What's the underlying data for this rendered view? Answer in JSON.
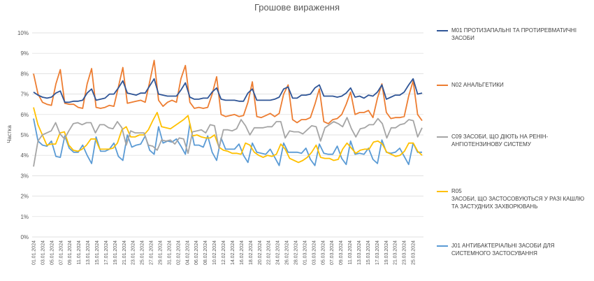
{
  "chart_data": {
    "type": "line",
    "title": "Грошове вираження",
    "ylabel": "Частка",
    "xlabel": "",
    "ylim": [
      0,
      10
    ],
    "y_ticks": [
      "0%",
      "1%",
      "2%",
      "3%",
      "4%",
      "5%",
      "6%",
      "7%",
      "8%",
      "9%",
      "10%"
    ],
    "x_tick_labels": [
      "01.01.2024",
      "03.01.2024",
      "05.01.2024",
      "07.01.2024",
      "09.01.2024",
      "11.01.2024",
      "13.01.2024",
      "15.01.2024",
      "17.01.2024",
      "19.01.2024",
      "21.01.2024",
      "23.01.2024",
      "25.01.2024",
      "27.01.2024",
      "29.01.2024",
      "31.01.2024",
      "02.02.2024",
      "04.02.2024",
      "06.02.2024",
      "08.02.2024",
      "10.02.2024",
      "12.02.2024",
      "14.02.2024",
      "16.02.2024",
      "18.02.2024",
      "20.02.2024",
      "22.02.2024",
      "24.02.2024",
      "26.02.2024",
      "28.02.2024",
      "01.03.2024",
      "03.03.2024",
      "05.03.2024",
      "07.03.2024",
      "09.03.2024",
      "11.03.2024",
      "13.03.2024",
      "15.03.2024",
      "17.03.2024",
      "19.03.2024",
      "21.03.2024",
      "23.03.2024",
      "25.03.2024"
    ],
    "grid": true,
    "legend_position": "right",
    "x_start": "2024-01-01",
    "x_end": "2024-03-27",
    "series": [
      {
        "name": "M01 ПРОТИЗАПАЛЬНІ ТА ПРОТИРЕВМАТИЧНІ ЗАСОБИ",
        "color": "#2f5597",
        "values": [
          7.1,
          6.95,
          6.85,
          6.8,
          6.85,
          7.05,
          7.15,
          6.6,
          6.6,
          6.65,
          6.65,
          6.7,
          7.05,
          7.25,
          6.7,
          6.75,
          6.8,
          7.0,
          7.0,
          7.3,
          7.65,
          7.05,
          7.0,
          6.95,
          7.05,
          7.05,
          7.4,
          7.75,
          7.0,
          6.95,
          6.9,
          6.9,
          6.9,
          7.2,
          7.55,
          6.85,
          6.75,
          6.75,
          6.8,
          6.8,
          7.1,
          7.3,
          6.75,
          6.7,
          6.7,
          6.7,
          6.65,
          6.65,
          7.05,
          7.25,
          6.7,
          6.7,
          6.7,
          6.7,
          6.75,
          6.85,
          7.25,
          7.35,
          6.8,
          6.8,
          6.95,
          6.95,
          7.0,
          7.3,
          7.45,
          6.9,
          6.9,
          6.9,
          6.85,
          6.9,
          7.05,
          7.3,
          6.85,
          6.9,
          6.8,
          6.95,
          6.9,
          7.1,
          7.45,
          6.75,
          6.85,
          6.95,
          6.95,
          7.1,
          7.45,
          7.75,
          7.0,
          7.05
        ]
      },
      {
        "name": "N02 АНАЛЬГЕТИКИ",
        "color": "#ed7d31",
        "values": [
          8.0,
          7.0,
          6.6,
          6.5,
          6.45,
          7.5,
          8.2,
          6.55,
          6.5,
          6.5,
          6.35,
          6.3,
          7.5,
          8.25,
          6.35,
          6.3,
          6.35,
          6.45,
          6.4,
          7.35,
          8.3,
          6.55,
          6.6,
          6.65,
          6.7,
          6.6,
          7.6,
          8.65,
          6.7,
          6.4,
          6.6,
          6.7,
          6.6,
          7.75,
          8.4,
          6.6,
          6.3,
          6.35,
          6.3,
          6.35,
          7.0,
          7.85,
          6.0,
          5.9,
          5.95,
          6.0,
          5.9,
          5.95,
          6.6,
          7.6,
          5.9,
          5.85,
          5.95,
          6.05,
          5.9,
          6.05,
          7.0,
          7.45,
          5.75,
          5.6,
          5.75,
          5.75,
          5.85,
          6.5,
          7.25,
          5.65,
          5.55,
          5.75,
          5.8,
          6.0,
          6.5,
          7.1,
          6.0,
          6.1,
          6.1,
          6.2,
          5.85,
          6.8,
          7.5,
          6.1,
          5.8,
          5.85,
          5.85,
          5.9,
          6.9,
          7.65,
          6.0,
          5.7
        ]
      },
      {
        "name": "C09 ЗАСОБИ, ЩО ДІЮТЬ НА РЕНІН-АНГІОТЕНЗИНОВУ СИСТЕМУ",
        "color": "#a5a5a5",
        "values": [
          3.45,
          4.7,
          5.0,
          5.1,
          5.2,
          5.6,
          5.05,
          4.8,
          5.2,
          5.55,
          5.6,
          5.5,
          5.6,
          5.6,
          5.1,
          5.5,
          5.5,
          5.35,
          5.3,
          5.65,
          5.35,
          4.5,
          5.2,
          5.1,
          5.1,
          5.1,
          4.5,
          4.45,
          4.25,
          4.75,
          4.7,
          4.75,
          4.55,
          4.85,
          4.8,
          4.1,
          5.15,
          5.2,
          5.25,
          5.1,
          5.5,
          5.45,
          4.35,
          5.25,
          5.25,
          5.2,
          5.3,
          5.75,
          5.45,
          5.0,
          5.35,
          5.35,
          5.35,
          5.4,
          5.4,
          5.65,
          5.65,
          4.85,
          5.2,
          5.15,
          5.15,
          5.05,
          5.25,
          5.45,
          5.4,
          4.7,
          5.35,
          5.5,
          5.65,
          5.55,
          5.4,
          5.85,
          5.3,
          4.9,
          5.3,
          5.35,
          5.5,
          5.5,
          5.8,
          5.55,
          4.85,
          5.35,
          5.35,
          5.5,
          5.55,
          5.75,
          5.7,
          4.9,
          5.35
        ]
      },
      {
        "name": "R05\nЗАСОБИ, ЩО ЗАСТОСОВУЮТЬСЯ У РАЗІ КАШЛЮ ТА ЗАСТУДНИХ ЗАХВОРЮВАНЬ",
        "color": "#ffc000",
        "values": [
          6.35,
          5.5,
          5.0,
          4.5,
          4.55,
          4.55,
          5.1,
          5.15,
          4.5,
          4.25,
          4.2,
          4.3,
          4.5,
          4.8,
          4.8,
          4.3,
          4.3,
          4.3,
          4.35,
          4.6,
          5.25,
          5.4,
          4.9,
          4.9,
          5.0,
          5.0,
          5.25,
          5.7,
          6.1,
          5.4,
          5.35,
          5.3,
          5.45,
          5.6,
          5.75,
          5.95,
          4.95,
          5.0,
          4.9,
          4.85,
          4.85,
          5.0,
          4.4,
          4.25,
          4.2,
          4.1,
          4.1,
          4.05,
          4.6,
          4.5,
          4.15,
          4.0,
          3.9,
          4.0,
          3.95,
          4.05,
          4.55,
          4.3,
          3.85,
          3.75,
          3.65,
          3.75,
          3.9,
          4.15,
          4.5,
          3.9,
          3.85,
          3.85,
          3.75,
          3.8,
          4.3,
          4.6,
          4.35,
          4.1,
          4.25,
          4.3,
          4.3,
          4.65,
          4.7,
          4.55,
          4.15,
          4.05,
          3.95,
          4.0,
          4.2,
          4.6,
          4.6,
          4.2,
          4.0
        ]
      },
      {
        "name": "J01 АНТИБАКТЕРІАЛЬНІ ЗАСОБИ ДЛЯ СИСТЕМНОГО ЗАСТОСУВАННЯ",
        "color": "#5b9bd5",
        "values": [
          5.8,
          4.7,
          4.5,
          4.45,
          4.7,
          3.95,
          3.9,
          4.95,
          4.35,
          4.15,
          4.15,
          4.5,
          4.0,
          3.6,
          4.9,
          4.2,
          4.2,
          4.3,
          4.6,
          3.95,
          3.75,
          5.0,
          4.4,
          4.5,
          4.55,
          4.95,
          4.25,
          4.05,
          5.4,
          4.6,
          4.7,
          4.65,
          4.8,
          4.45,
          4.05,
          5.55,
          4.5,
          4.5,
          4.4,
          4.95,
          4.15,
          3.75,
          4.85,
          4.3,
          4.3,
          4.3,
          4.55,
          4.0,
          3.65,
          4.6,
          4.15,
          4.1,
          4.05,
          4.3,
          3.9,
          3.5,
          4.6,
          4.15,
          4.15,
          4.15,
          4.1,
          4.35,
          3.8,
          3.5,
          4.55,
          4.1,
          4.05,
          4.05,
          4.45,
          3.85,
          3.55,
          4.7,
          4.05,
          4.1,
          4.05,
          4.35,
          3.8,
          3.6,
          4.75,
          4.15,
          4.1,
          4.15,
          4.35,
          3.95,
          3.55,
          4.6,
          4.15,
          4.15
        ]
      }
    ]
  }
}
